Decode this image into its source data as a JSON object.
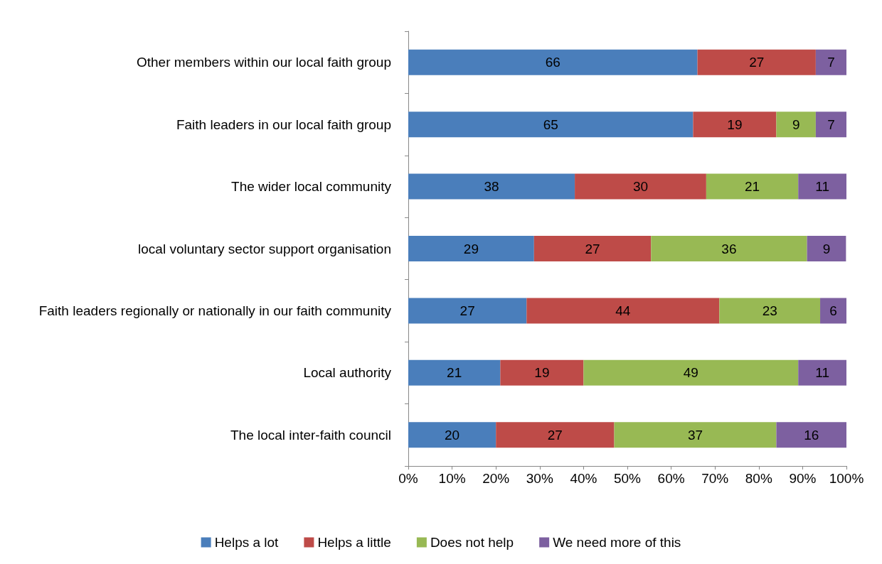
{
  "chart_data": {
    "type": "bar",
    "orientation": "horizontal",
    "stacked": true,
    "categories": [
      "Other members within our local faith group",
      "Faith leaders in our local faith group",
      "The wider local community",
      "local voluntary sector support organisation",
      "Faith leaders regionally or nationally in our faith community",
      "Local authority",
      "The local inter-faith council"
    ],
    "series": [
      {
        "name": "Helps a lot",
        "color": "#4a7ebb",
        "values": [
          66,
          65,
          38,
          28.7,
          27,
          21,
          20
        ],
        "value_labels": [
          "66",
          "65",
          "38",
          "29",
          "27",
          "21",
          "20"
        ]
      },
      {
        "name": "Helps a little",
        "color": "#be4b48",
        "values": [
          27,
          19,
          30,
          26.7,
          44,
          19,
          27
        ],
        "value_labels": [
          "27",
          "19",
          "30",
          "27",
          "44",
          "19",
          "27"
        ]
      },
      {
        "name": "Does not help",
        "color": "#98b954",
        "values": [
          null,
          9,
          21,
          35.6,
          23,
          49,
          37
        ],
        "value_labels": [
          null,
          "9",
          "21",
          "36",
          "23",
          "49",
          "37"
        ]
      },
      {
        "name": "We need more of this",
        "color": "#7d60a0",
        "values": [
          7,
          7,
          11,
          8.9,
          6,
          11,
          16
        ],
        "value_labels": [
          "7",
          "7",
          "11",
          "9",
          "6",
          "11",
          "16"
        ]
      }
    ],
    "xlim": [
      0,
      100
    ],
    "xticks": [
      {
        "value": 0,
        "label": "0%"
      },
      {
        "value": 10,
        "label": "10%"
      },
      {
        "value": 20,
        "label": "20%"
      },
      {
        "value": 30,
        "label": "30%"
      },
      {
        "value": 40,
        "label": "40%"
      },
      {
        "value": 50,
        "label": "50%"
      },
      {
        "value": 60,
        "label": "60%"
      },
      {
        "value": 70,
        "label": "70%"
      },
      {
        "value": 80,
        "label": "80%"
      },
      {
        "value": 90,
        "label": "90%"
      },
      {
        "value": 100,
        "label": "100%"
      }
    ],
    "legend": "bottom",
    "grid": false
  }
}
